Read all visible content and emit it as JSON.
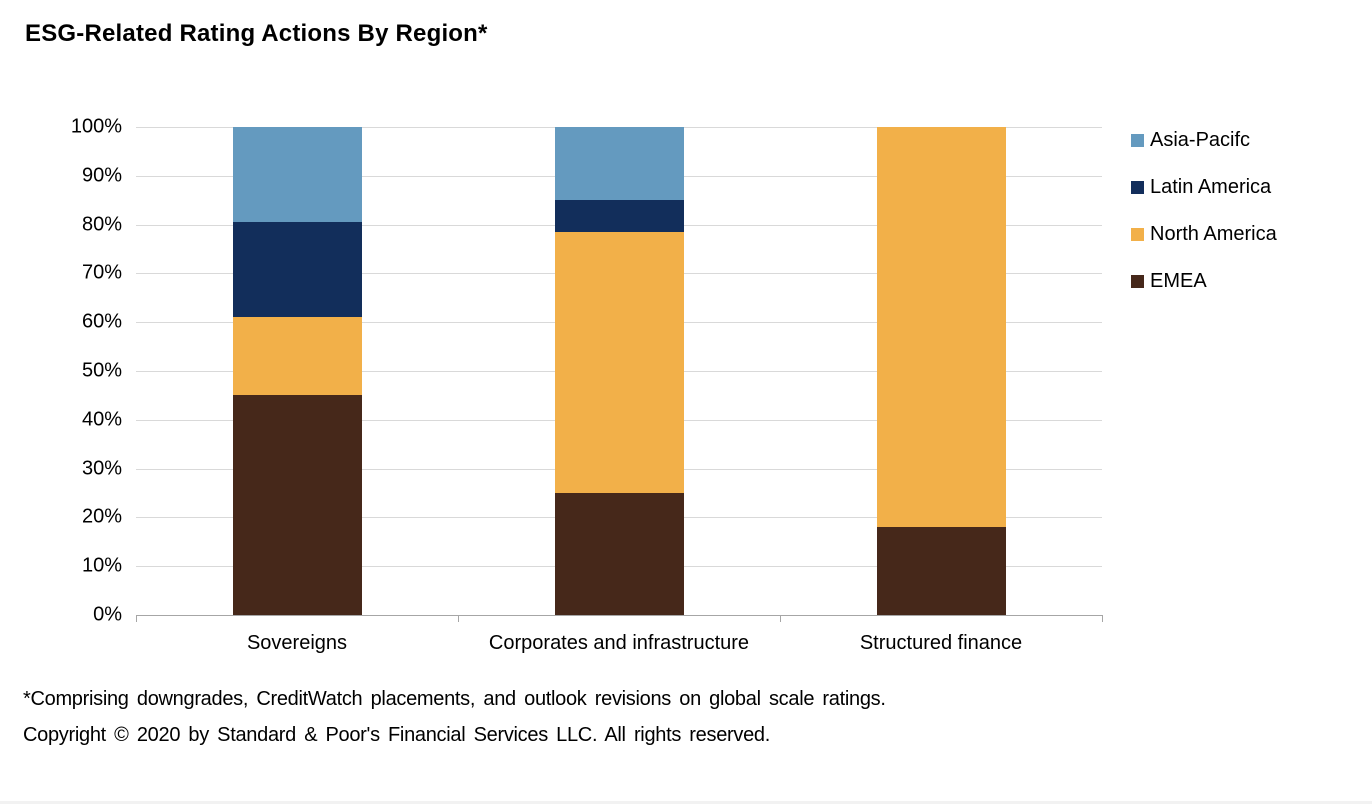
{
  "title": "ESG-Related Rating Actions By Region*",
  "footnotes": {
    "line1": "*Comprising downgrades, CreditWatch placements, and outlook revisions on global scale ratings.",
    "line2": "Copyright © 2020 by Standard & Poor's Financial Services LLC. All rights reserved."
  },
  "colors": {
    "gridline": "#d9d9d9",
    "axis": "#a6a6a6",
    "text": "#000000"
  },
  "chart_data": {
    "type": "bar",
    "stacked": true,
    "orientation": "vertical",
    "title": "ESG-Related Rating Actions By Region*",
    "categories": [
      "Sovereigns",
      "Corporates and infrastructure",
      "Structured finance"
    ],
    "series": [
      {
        "name": "EMEA",
        "color": "#46281A",
        "values": [
          45,
          25,
          18
        ]
      },
      {
        "name": "North America",
        "color": "#F2B049",
        "values": [
          16,
          53.5,
          82
        ]
      },
      {
        "name": "Latin America",
        "color": "#122E5B",
        "values": [
          19.5,
          6.5,
          0
        ]
      },
      {
        "name": "Asia-Pacifc",
        "color": "#649ABF",
        "values": [
          19.5,
          15,
          0
        ]
      }
    ],
    "ylabel": "",
    "xlabel": "",
    "ylim": [
      0,
      100
    ],
    "ytick_step": 10,
    "yticks": [
      "0%",
      "10%",
      "20%",
      "30%",
      "40%",
      "50%",
      "60%",
      "70%",
      "80%",
      "90%",
      "100%"
    ],
    "grid": true,
    "legend_position": "right",
    "legend_order": [
      "Asia-Pacifc",
      "Latin America",
      "North America",
      "EMEA"
    ]
  }
}
